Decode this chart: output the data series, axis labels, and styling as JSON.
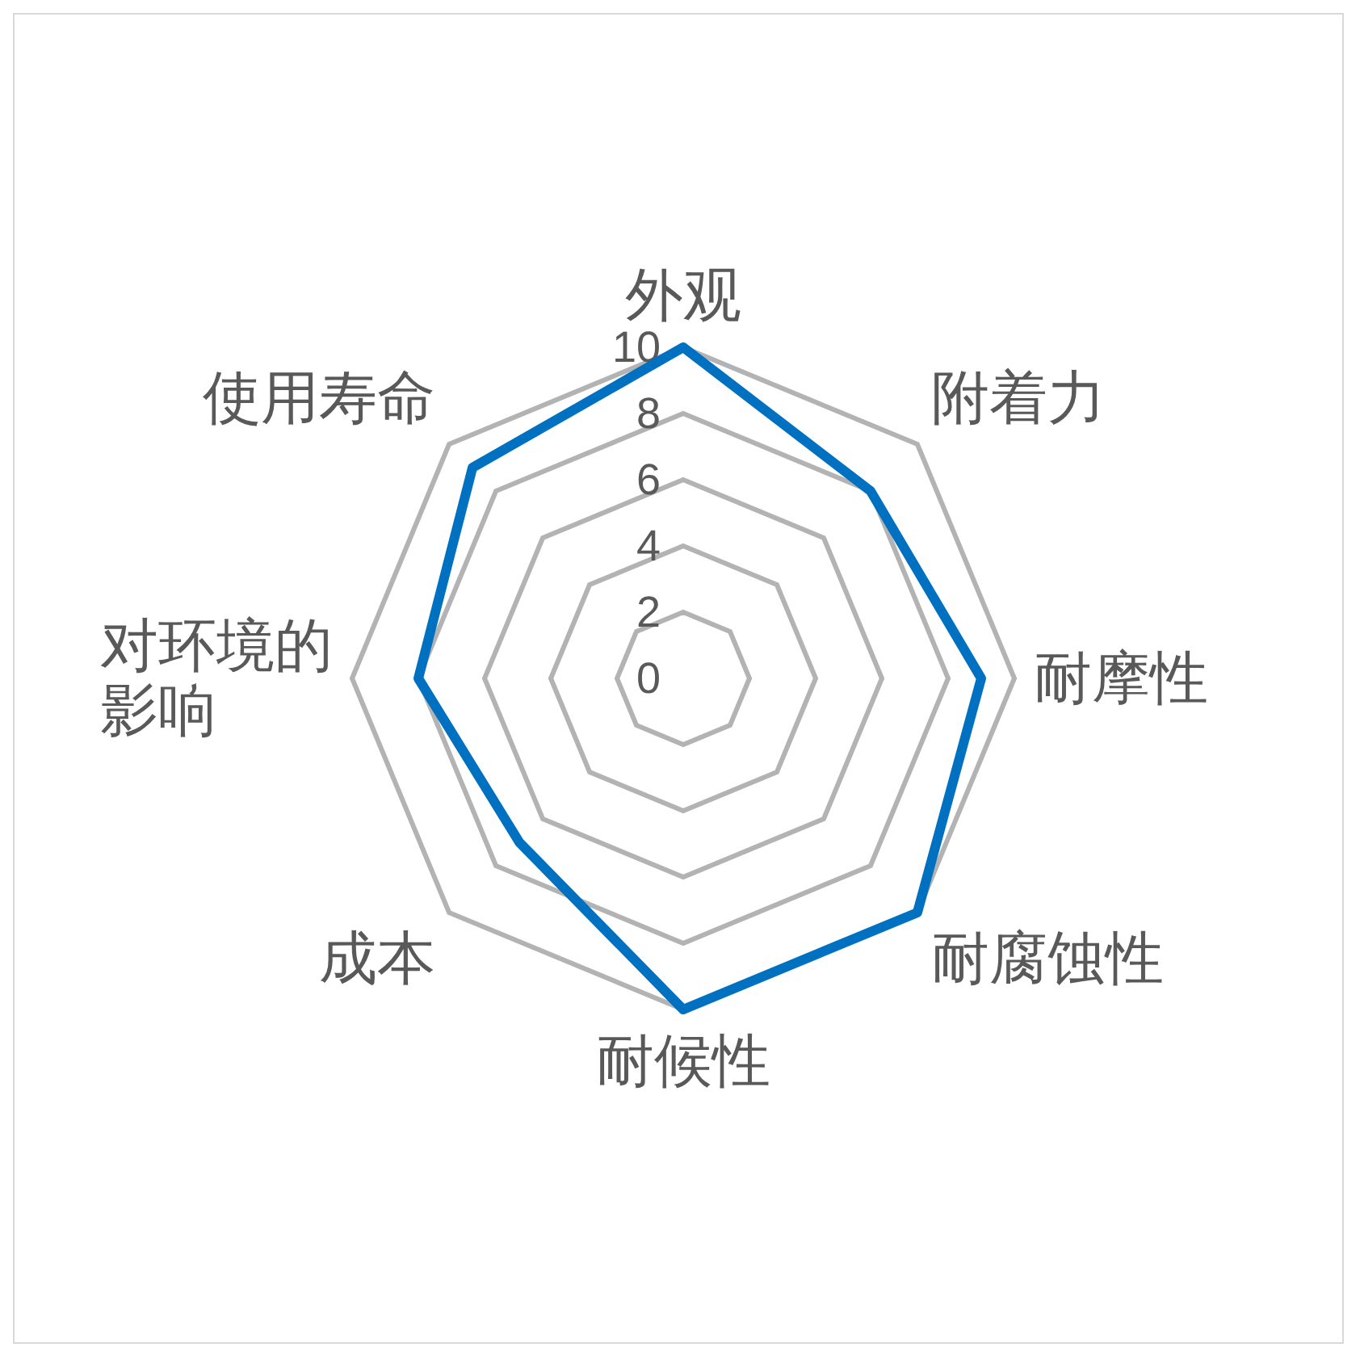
{
  "chart_data": {
    "type": "radar",
    "categories": [
      "外观",
      "附着力",
      "耐摩性",
      "耐腐蚀性",
      "耐候性",
      "成本",
      "对环境的影响",
      "使用寿命"
    ],
    "series": [
      {
        "color": "#0070c0",
        "values": [
          10,
          8,
          9,
          10,
          10,
          7,
          8,
          9
        ]
      }
    ],
    "ylim": [
      0,
      10
    ],
    "yticks": [
      0,
      2,
      4,
      6,
      8,
      10
    ],
    "grid": true,
    "line_style": "solid"
  }
}
